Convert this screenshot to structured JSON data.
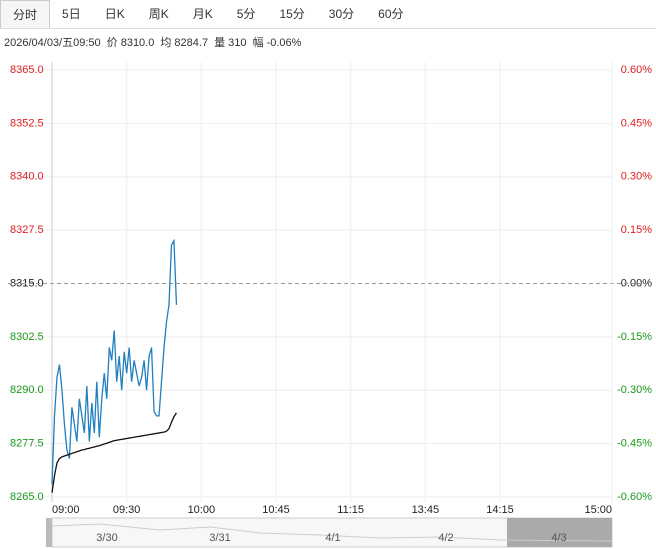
{
  "tabs": [
    "分时",
    "5日",
    "日K",
    "周K",
    "月K",
    "5分",
    "15分",
    "30分",
    "60分"
  ],
  "info": {
    "datetime": "2026/04/03/五09:50",
    "price_label": "价",
    "price": "8310.0",
    "avg_label": "均",
    "avg": "8284.7",
    "vol_label": "量",
    "vol": "310",
    "chg_label": "幅",
    "chg": "-0.06%"
  },
  "chart_data": {
    "type": "line",
    "ylim": [
      8265,
      8365
    ],
    "yticks": [
      {
        "value": 8365,
        "label": "8365.0"
      },
      {
        "value": 8352.5,
        "label": "8352.5"
      },
      {
        "value": 8340,
        "label": "8340.0"
      },
      {
        "value": 8327.5,
        "label": "8327.5"
      },
      {
        "value": 8315,
        "label": "8315.0"
      },
      {
        "value": 8302.5,
        "label": "8302.5"
      },
      {
        "value": 8290,
        "label": "8290.0"
      },
      {
        "value": 8277.5,
        "label": "8277.5"
      },
      {
        "value": 8265,
        "label": "8265.0"
      }
    ],
    "y2lim": [
      -0.6,
      0.6
    ],
    "y2ticks": [
      {
        "value": 0.6,
        "label": "0.60%"
      },
      {
        "value": 0.45,
        "label": "0.45%"
      },
      {
        "value": 0.3,
        "label": "0.30%"
      },
      {
        "value": 0.15,
        "label": "0.15%"
      },
      {
        "value": 0,
        "label": "0.00%"
      },
      {
        "value": -0.15,
        "label": "-0.15%"
      },
      {
        "value": -0.3,
        "label": "-0.30%"
      },
      {
        "value": -0.45,
        "label": "-0.45%"
      },
      {
        "value": -0.6,
        "label": "-0.60%"
      }
    ],
    "xlim": [
      0,
      225
    ],
    "xticks": [
      {
        "value": 0,
        "label": "09:00"
      },
      {
        "value": 30,
        "label": "09:30"
      },
      {
        "value": 60,
        "label": "10:00"
      },
      {
        "value": 90,
        "label": "10:45"
      },
      {
        "value": 120,
        "label": "11:15"
      },
      {
        "value": 150,
        "label": "13:45"
      },
      {
        "value": 180,
        "label": "14:15"
      },
      {
        "value": 225,
        "label": "15:00"
      }
    ],
    "reference_line": 8315,
    "up_color": "#e02020",
    "down_color": "#1a9a1a",
    "grid": true,
    "series": [
      {
        "name": "价",
        "color": "#1f7fbf",
        "values": [
          8268,
          8284,
          8293,
          8296,
          8290,
          8282,
          8276,
          8274,
          8286,
          8282,
          8278,
          8288,
          8284,
          8280,
          8291,
          8278,
          8287,
          8280,
          8292,
          8279,
          8288,
          8294,
          8288,
          8300,
          8297,
          8304,
          8292,
          8298,
          8290,
          8299,
          8294,
          8300,
          8292,
          8297,
          8294,
          8291,
          8293,
          8297,
          8290,
          8298,
          8300,
          8285,
          8284,
          8284,
          8292,
          8300,
          8306,
          8310,
          8324,
          8325,
          8310
        ]
      },
      {
        "name": "均",
        "color": "#111111",
        "values": [
          8266,
          8270,
          8273,
          8274,
          8274.4,
          8274.6,
          8274.8,
          8275,
          8275.2,
          8275.4,
          8275.6,
          8275.8,
          8276,
          8276.1,
          8276.3,
          8276.4,
          8276.6,
          8276.7,
          8276.9,
          8277,
          8277.2,
          8277.4,
          8277.6,
          8277.8,
          8278,
          8278.2,
          8278.3,
          8278.4,
          8278.5,
          8278.6,
          8278.7,
          8278.8,
          8278.9,
          8279,
          8279.1,
          8279.2,
          8279.3,
          8279.4,
          8279.5,
          8279.6,
          8279.7,
          8279.8,
          8279.9,
          8280,
          8280.1,
          8280.2,
          8280.4,
          8281,
          8282.5,
          8283.8,
          8284.7
        ]
      }
    ]
  },
  "navigator": {
    "dates": [
      "3/30",
      "3/31",
      "4/1",
      "4/2",
      "4/3"
    ]
  }
}
